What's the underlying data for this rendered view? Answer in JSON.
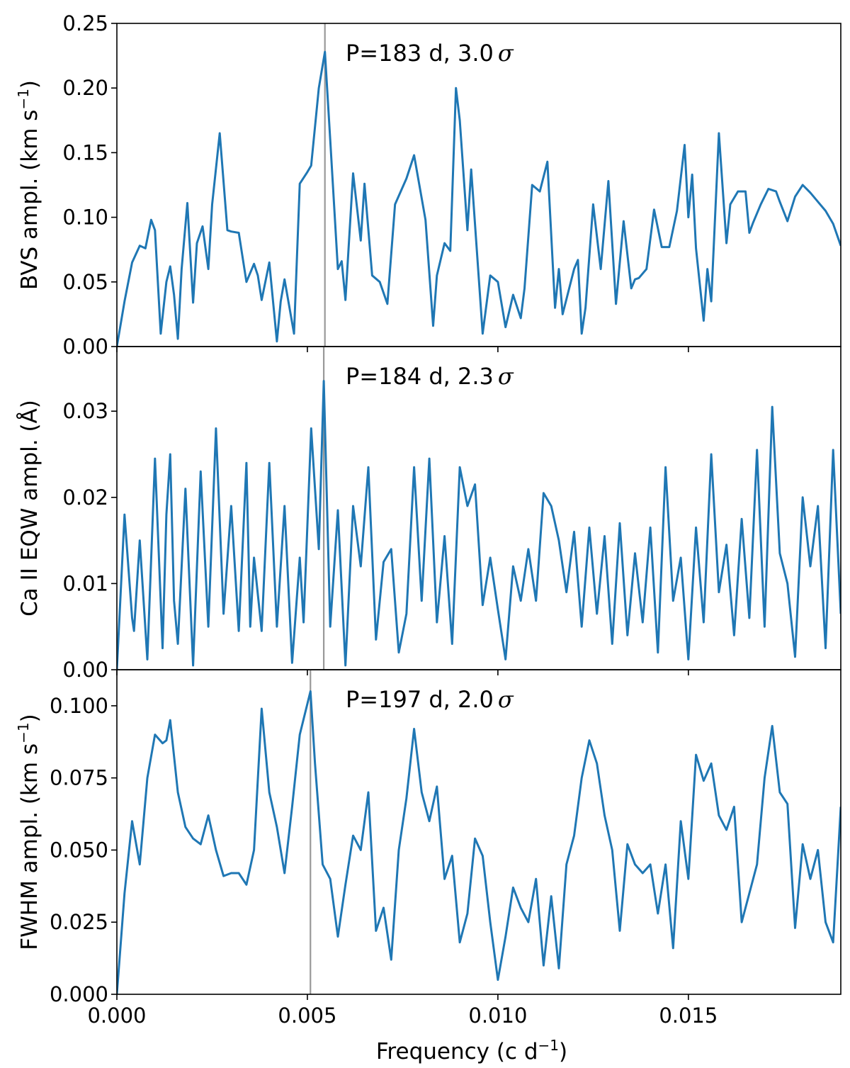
{
  "chart_data": [
    {
      "type": "line",
      "panel": "top",
      "ylabel_main": "BVS ampl. (km s",
      "ylabel_sup": "−1",
      "ylabel_end": ")",
      "annotation_main": "P=183 d, 3.0",
      "annotation_sigma": "σ",
      "xlim": [
        0.0,
        0.019
      ],
      "ylim": [
        0.0,
        0.25
      ],
      "yticks": [
        "0.00",
        "0.05",
        "0.10",
        "0.15",
        "0.20",
        "0.25"
      ],
      "ytick_values": [
        0.0,
        0.05,
        0.1,
        0.15,
        0.2,
        0.25
      ],
      "marker_x": 0.00546,
      "line_color": "#1f77b4",
      "marker_color": "#999999",
      "series": [
        {
          "x": [
            0.0,
            0.0002,
            0.0004,
            0.0006,
            0.00075,
            0.0009,
            0.001,
            0.00115,
            0.0013,
            0.0014,
            0.0015,
            0.0016,
            0.0017,
            0.00185,
            0.002,
            0.0021,
            0.00225,
            0.0024,
            0.0025,
            0.0027,
            0.0029,
            0.003,
            0.0032,
            0.0034,
            0.0036,
            0.0037,
            0.0038,
            0.004,
            0.0042,
            0.0043,
            0.0044,
            0.00465,
            0.0048,
            0.005,
            0.0051,
            0.0053,
            0.00546,
            0.0056,
            0.0058,
            0.0059,
            0.006,
            0.0062,
            0.0064,
            0.0065,
            0.0067,
            0.0069,
            0.0071,
            0.0073,
            0.0076,
            0.0078,
            0.0081,
            0.0083,
            0.0084,
            0.0086,
            0.00875,
            0.0089,
            0.009,
            0.0092,
            0.0093,
            0.0096,
            0.0098,
            0.01,
            0.0102,
            0.0104,
            0.0106,
            0.0107,
            0.0109,
            0.0111,
            0.0113,
            0.0115,
            0.0116,
            0.0117,
            0.012,
            0.0121,
            0.0122,
            0.0123,
            0.0124,
            0.0125,
            0.0127,
            0.0129,
            0.0131,
            0.0133,
            0.0135,
            0.0136,
            0.0137,
            0.0139,
            0.0141,
            0.0143,
            0.0145,
            0.0147,
            0.0149,
            0.015,
            0.0151,
            0.0152,
            0.0154,
            0.0155,
            0.0156,
            0.0158,
            0.016,
            0.0161,
            0.0163,
            0.0165,
            0.0166,
            0.0167,
            0.0169,
            0.0171,
            0.0173,
            0.0174,
            0.0176,
            0.0178,
            0.018,
            0.0182,
            0.0184,
            0.0186,
            0.0188,
            0.019
          ],
          "y": [
            0.0,
            0.035,
            0.065,
            0.078,
            0.076,
            0.098,
            0.09,
            0.01,
            0.05,
            0.062,
            0.04,
            0.006,
            0.06,
            0.111,
            0.034,
            0.08,
            0.093,
            0.06,
            0.11,
            0.165,
            0.09,
            0.089,
            0.088,
            0.05,
            0.064,
            0.055,
            0.036,
            0.065,
            0.004,
            0.035,
            0.052,
            0.01,
            0.126,
            0.135,
            0.14,
            0.2,
            0.228,
            0.16,
            0.06,
            0.066,
            0.036,
            0.134,
            0.082,
            0.126,
            0.055,
            0.05,
            0.033,
            0.11,
            0.13,
            0.148,
            0.098,
            0.016,
            0.055,
            0.08,
            0.074,
            0.2,
            0.175,
            0.09,
            0.137,
            0.01,
            0.055,
            0.05,
            0.015,
            0.04,
            0.022,
            0.045,
            0.125,
            0.12,
            0.143,
            0.03,
            0.06,
            0.025,
            0.06,
            0.067,
            0.01,
            0.03,
            0.07,
            0.11,
            0.06,
            0.128,
            0.033,
            0.097,
            0.045,
            0.052,
            0.053,
            0.06,
            0.106,
            0.077,
            0.077,
            0.105,
            0.156,
            0.1,
            0.133,
            0.076,
            0.02,
            0.06,
            0.035,
            0.165,
            0.08,
            0.11,
            0.12,
            0.12,
            0.088,
            0.096,
            0.11,
            0.122,
            0.12,
            0.112,
            0.097,
            0.116,
            0.125,
            0.119,
            0.112,
            0.105,
            0.095,
            0.078
          ]
        }
      ]
    },
    {
      "type": "line",
      "panel": "middle",
      "ylabel_main": "Ca II EQW ampl. (Å)",
      "annotation_main": "P=184 d, 2.3",
      "annotation_sigma": "σ",
      "xlim": [
        0.0,
        0.019
      ],
      "ylim": [
        0.0,
        0.0375
      ],
      "yticks": [
        "0.00",
        "0.01",
        "0.02",
        "0.03"
      ],
      "ytick_values": [
        0.0,
        0.01,
        0.02,
        0.03
      ],
      "marker_x": 0.00543,
      "line_color": "#1f77b4",
      "marker_color": "#999999",
      "series": [
        {
          "x": [
            0.0,
            0.0002,
            0.0004,
            0.00045,
            0.0006,
            0.0008,
            0.001,
            0.0012,
            0.0013,
            0.0014,
            0.0015,
            0.0016,
            0.0018,
            0.002,
            0.0022,
            0.0024,
            0.0026,
            0.0028,
            0.003,
            0.0032,
            0.0034,
            0.0035,
            0.0036,
            0.0038,
            0.004,
            0.0042,
            0.0044,
            0.0046,
            0.0048,
            0.0049,
            0.0051,
            0.0053,
            0.00543,
            0.0056,
            0.0058,
            0.006,
            0.0062,
            0.0064,
            0.0066,
            0.0068,
            0.007,
            0.0072,
            0.0074,
            0.0076,
            0.0078,
            0.008,
            0.0082,
            0.0084,
            0.0086,
            0.0088,
            0.009,
            0.0092,
            0.0094,
            0.0096,
            0.0098,
            0.01,
            0.0102,
            0.0104,
            0.0106,
            0.0108,
            0.011,
            0.0112,
            0.0114,
            0.0116,
            0.0118,
            0.012,
            0.0122,
            0.0124,
            0.0126,
            0.0128,
            0.013,
            0.0132,
            0.0134,
            0.0136,
            0.0138,
            0.014,
            0.0142,
            0.0144,
            0.0146,
            0.0148,
            0.015,
            0.0152,
            0.0154,
            0.0156,
            0.0158,
            0.016,
            0.0162,
            0.0164,
            0.0166,
            0.0168,
            0.017,
            0.0172,
            0.0174,
            0.0176,
            0.0178,
            0.018,
            0.0182,
            0.0184,
            0.0186,
            0.0188,
            0.019
          ],
          "y": [
            0.0,
            0.018,
            0.006,
            0.0045,
            0.015,
            0.0012,
            0.0245,
            0.0025,
            0.018,
            0.025,
            0.008,
            0.003,
            0.021,
            0.0005,
            0.023,
            0.005,
            0.028,
            0.0065,
            0.019,
            0.0045,
            0.024,
            0.005,
            0.013,
            0.0045,
            0.024,
            0.005,
            0.019,
            0.0008,
            0.013,
            0.0055,
            0.028,
            0.014,
            0.0335,
            0.005,
            0.0185,
            0.0005,
            0.019,
            0.012,
            0.0235,
            0.0035,
            0.0125,
            0.014,
            0.002,
            0.0065,
            0.0235,
            0.008,
            0.0245,
            0.0055,
            0.0155,
            0.003,
            0.0235,
            0.019,
            0.0215,
            0.0075,
            0.013,
            0.007,
            0.0012,
            0.012,
            0.008,
            0.014,
            0.008,
            0.0205,
            0.019,
            0.015,
            0.009,
            0.016,
            0.005,
            0.0165,
            0.0065,
            0.0155,
            0.003,
            0.017,
            0.004,
            0.0135,
            0.0055,
            0.0165,
            0.002,
            0.0235,
            0.008,
            0.013,
            0.0012,
            0.0165,
            0.0055,
            0.025,
            0.009,
            0.0145,
            0.004,
            0.0175,
            0.006,
            0.0255,
            0.005,
            0.0305,
            0.0135,
            0.01,
            0.0015,
            0.02,
            0.012,
            0.019,
            0.0025,
            0.0255,
            0.0065
          ]
        }
      ]
    },
    {
      "type": "line",
      "panel": "bottom",
      "ylabel_main": "FWHM ampl. (km s",
      "ylabel_sup": "−1",
      "ylabel_end": ")",
      "annotation_main": "P=197 d, 2.0",
      "annotation_sigma": "σ",
      "xlim": [
        0.0,
        0.019
      ],
      "ylim": [
        0.0,
        0.1125
      ],
      "yticks": [
        "0.000",
        "0.025",
        "0.050",
        "0.075",
        "0.100"
      ],
      "ytick_values": [
        0.0,
        0.025,
        0.05,
        0.075,
        0.1
      ],
      "xticks": [
        "0.000",
        "0.005",
        "0.010",
        "0.015"
      ],
      "xtick_values": [
        0.0,
        0.005,
        0.01,
        0.015
      ],
      "xlabel_main": "Frequency (c d",
      "xlabel_sup": "−1",
      "xlabel_end": ")",
      "marker_x": 0.00508,
      "line_color": "#1f77b4",
      "marker_color": "#999999",
      "series": [
        {
          "x": [
            0.0,
            0.0002,
            0.0004,
            0.0006,
            0.0008,
            0.001,
            0.0012,
            0.0013,
            0.0014,
            0.0016,
            0.0018,
            0.002,
            0.0022,
            0.0024,
            0.0026,
            0.0028,
            0.003,
            0.0032,
            0.0034,
            0.0036,
            0.0038,
            0.004,
            0.0042,
            0.0044,
            0.0046,
            0.0048,
            0.00508,
            0.0052,
            0.0054,
            0.0056,
            0.0058,
            0.006,
            0.0062,
            0.0064,
            0.0066,
            0.0068,
            0.007,
            0.0072,
            0.0074,
            0.0076,
            0.0078,
            0.008,
            0.0082,
            0.0084,
            0.0086,
            0.0088,
            0.009,
            0.0092,
            0.0094,
            0.0096,
            0.0098,
            0.01,
            0.0102,
            0.0104,
            0.0106,
            0.0108,
            0.011,
            0.0112,
            0.0114,
            0.0116,
            0.0118,
            0.012,
            0.0122,
            0.0124,
            0.0126,
            0.0128,
            0.013,
            0.0132,
            0.0134,
            0.0136,
            0.0138,
            0.014,
            0.0142,
            0.0144,
            0.0146,
            0.0148,
            0.015,
            0.0152,
            0.0154,
            0.0156,
            0.0158,
            0.016,
            0.0162,
            0.0164,
            0.0166,
            0.0168,
            0.017,
            0.0172,
            0.0174,
            0.0176,
            0.0178,
            0.018,
            0.0182,
            0.0184,
            0.0186,
            0.0188,
            0.019
          ],
          "y": [
            0.0,
            0.035,
            0.06,
            0.045,
            0.075,
            0.09,
            0.087,
            0.088,
            0.095,
            0.07,
            0.058,
            0.054,
            0.052,
            0.062,
            0.05,
            0.041,
            0.042,
            0.042,
            0.038,
            0.05,
            0.099,
            0.07,
            0.058,
            0.042,
            0.065,
            0.09,
            0.105,
            0.08,
            0.045,
            0.04,
            0.02,
            0.038,
            0.055,
            0.05,
            0.07,
            0.022,
            0.03,
            0.012,
            0.05,
            0.068,
            0.092,
            0.07,
            0.06,
            0.072,
            0.04,
            0.048,
            0.018,
            0.028,
            0.054,
            0.048,
            0.025,
            0.005,
            0.02,
            0.037,
            0.03,
            0.025,
            0.04,
            0.01,
            0.034,
            0.009,
            0.045,
            0.055,
            0.075,
            0.088,
            0.08,
            0.062,
            0.05,
            0.022,
            0.052,
            0.045,
            0.042,
            0.045,
            0.028,
            0.045,
            0.016,
            0.06,
            0.04,
            0.083,
            0.074,
            0.08,
            0.062,
            0.057,
            0.065,
            0.025,
            0.035,
            0.045,
            0.075,
            0.093,
            0.07,
            0.066,
            0.023,
            0.052,
            0.04,
            0.05,
            0.025,
            0.018,
            0.065
          ]
        }
      ]
    }
  ]
}
